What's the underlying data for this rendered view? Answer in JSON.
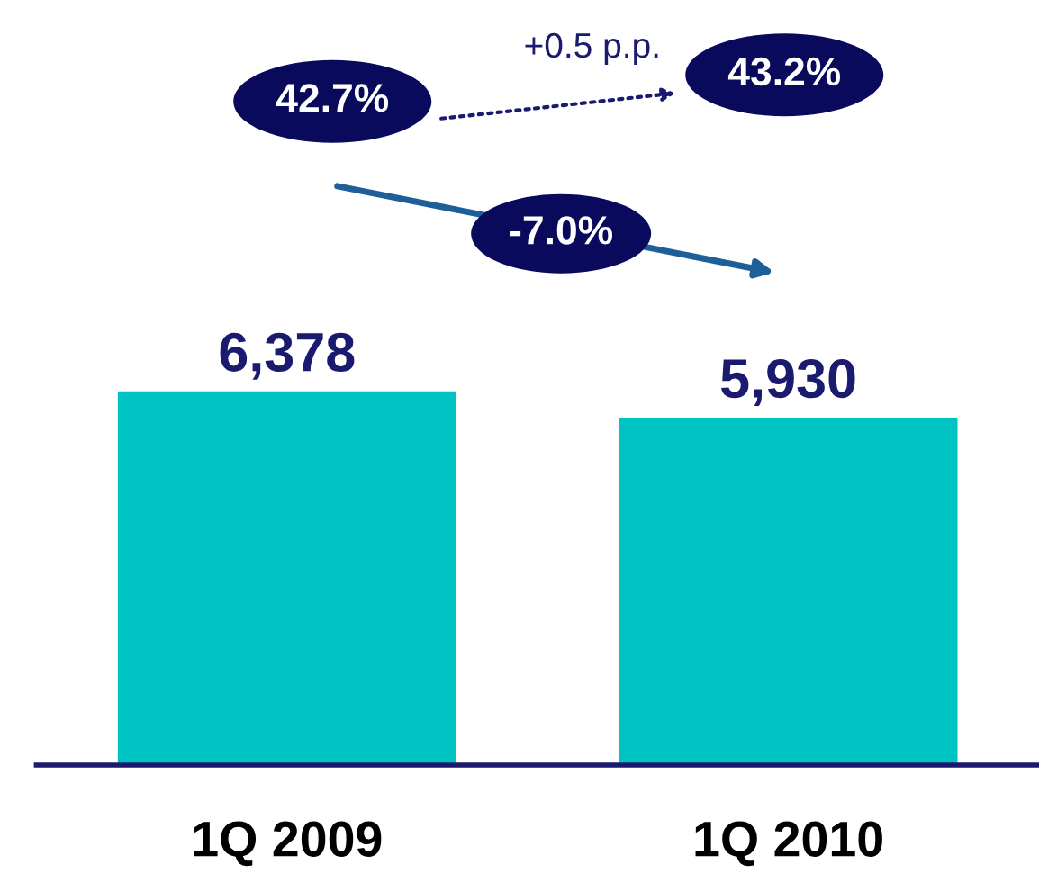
{
  "chart_data": {
    "type": "bar",
    "categories": [
      "1Q 2009",
      "1Q 2010"
    ],
    "values": [
      6378,
      5930
    ],
    "color": "#00c4c4",
    "data_labels": true,
    "value_labels": [
      "6,378",
      "5,930"
    ],
    "tick_labels": "x",
    "grid": false,
    "legend": false,
    "annotations": [
      "42.7%",
      "43.2%",
      "+0.5 p.p.",
      "-7.0%"
    ]
  }
}
